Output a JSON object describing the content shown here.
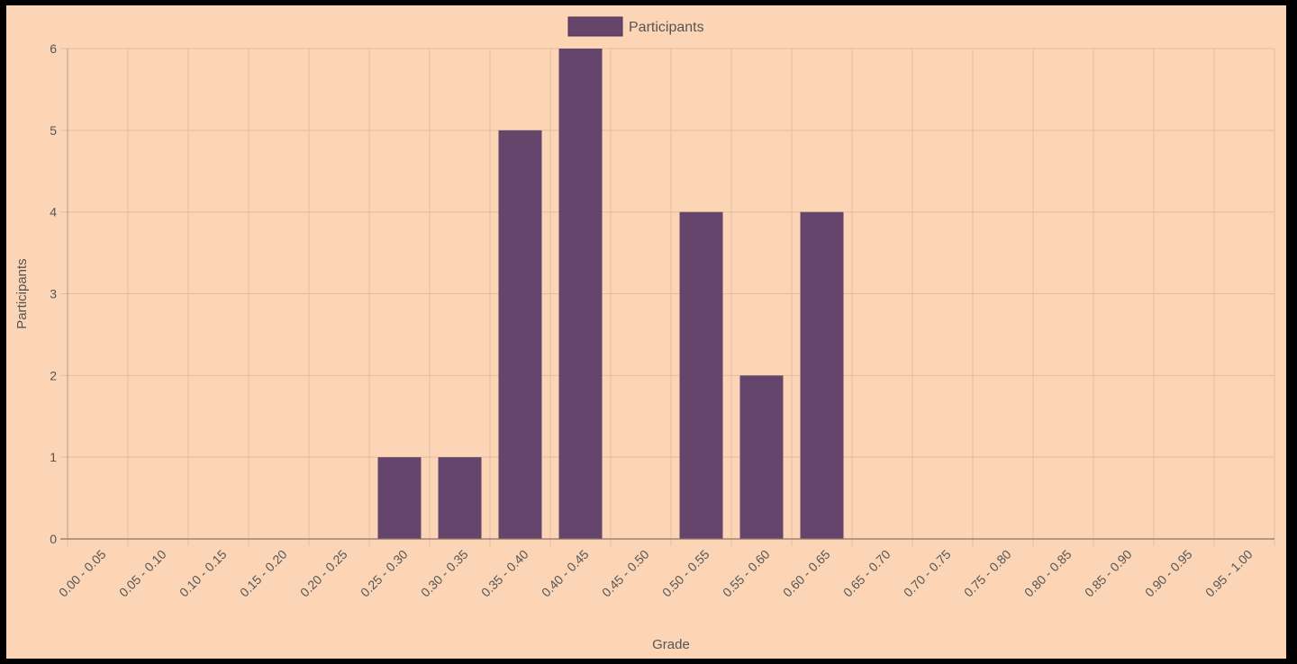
{
  "chart_data": {
    "type": "bar",
    "title": "",
    "xlabel": "Grade",
    "ylabel": "Participants",
    "ylim": [
      0,
      6
    ],
    "yticks": [
      0,
      1,
      2,
      3,
      4,
      5,
      6
    ],
    "categories": [
      "0.00 - 0.05",
      "0.05 - 0.10",
      "0.10 - 0.15",
      "0.15 - 0.20",
      "0.20 - 0.25",
      "0.25 - 0.30",
      "0.30 - 0.35",
      "0.35 - 0.40",
      "0.40 - 0.45",
      "0.45 - 0.50",
      "0.50 - 0.55",
      "0.55 - 0.60",
      "0.60 - 0.65",
      "0.65 - 0.70",
      "0.70 - 0.75",
      "0.75 - 0.80",
      "0.80 - 0.85",
      "0.85 - 0.90",
      "0.90 - 0.95",
      "0.95 - 1.00"
    ],
    "series": [
      {
        "name": "Participants",
        "color": "#65456c",
        "values": [
          0,
          0,
          0,
          0,
          0,
          1,
          1,
          5,
          6,
          0,
          4,
          2,
          4,
          0,
          0,
          0,
          0,
          0,
          0,
          0
        ]
      }
    ],
    "grid": true,
    "legend": "top-center",
    "background": "#fbd5b6",
    "grid_color": "#e3bd9c"
  }
}
